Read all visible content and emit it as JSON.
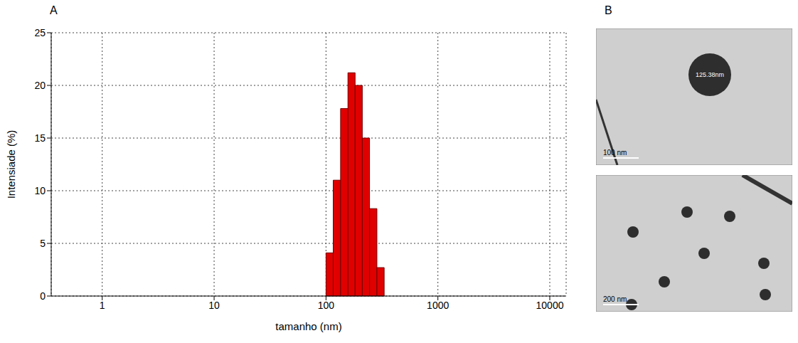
{
  "panels": [
    "A",
    "B"
  ],
  "chart_data": {
    "type": "histogram",
    "x_label": "tamanho (nm)",
    "y_label": "Intensiade (%)",
    "bins": [
      100,
      116,
      135,
      157,
      182,
      211,
      245,
      285,
      331
    ],
    "values": [
      4.1,
      11,
      17.8,
      21.2,
      20,
      15,
      8.3,
      2.7
    ],
    "color": "#e00000",
    "log": "x",
    "xlim": [
      0.35,
      14000
    ],
    "xticks": [
      1,
      10,
      100,
      1000,
      10000
    ],
    "ylim": [
      0,
      25
    ],
    "yticks": [
      0,
      5,
      10,
      15,
      20,
      25
    ],
    "grid": true
  },
  "images": [
    {
      "scale_bar": "100 nm",
      "measurement": "125.38nm"
    },
    {
      "scale_bar": "200 nm"
    }
  ]
}
